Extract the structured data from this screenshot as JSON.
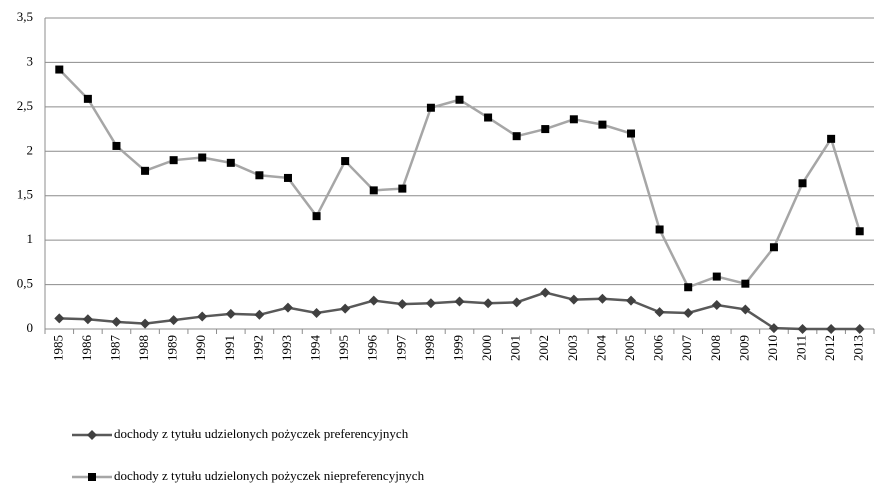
{
  "chart_data": {
    "type": "line",
    "categories": [
      "1985",
      "1986",
      "1987",
      "1988",
      "1989",
      "1990",
      "1991",
      "1992",
      "1993",
      "1994",
      "1995",
      "1996",
      "1997",
      "1998",
      "1999",
      "2000",
      "2001",
      "2002",
      "2003",
      "2004",
      "2005",
      "2006",
      "2007",
      "2008",
      "2009",
      "2010",
      "2011",
      "2012",
      "2013"
    ],
    "series": [
      {
        "name": "dochody z tytułu udzielonych pożyczek preferencyjnych",
        "color": "#595959",
        "marker": "diamond",
        "marker_color": "#404040",
        "values": [
          0.12,
          0.11,
          0.08,
          0.06,
          0.1,
          0.14,
          0.17,
          0.16,
          0.24,
          0.18,
          0.23,
          0.32,
          0.28,
          0.29,
          0.31,
          0.29,
          0.3,
          0.41,
          0.33,
          0.34,
          0.32,
          0.19,
          0.18,
          0.27,
          0.22,
          0.01,
          0.0,
          0.0,
          0.0
        ]
      },
      {
        "name": "dochody z tytułu udzielonych pożyczek niepreferencyjnych",
        "color": "#a6a6a6",
        "marker": "square",
        "marker_color": "#000000",
        "values": [
          2.92,
          2.59,
          2.06,
          1.78,
          1.9,
          1.93,
          1.87,
          1.73,
          1.7,
          1.27,
          1.89,
          1.56,
          1.58,
          2.49,
          2.58,
          2.38,
          2.17,
          2.25,
          2.36,
          2.3,
          2.2,
          1.12,
          0.47,
          0.59,
          0.51,
          0.92,
          1.64,
          2.14,
          1.1
        ]
      }
    ],
    "ylim": [
      0,
      3.5
    ],
    "yticks": [
      0,
      {
        "value": 0.5,
        "label": "0,5"
      },
      1,
      {
        "value": 1.5,
        "label": "1,5"
      },
      2,
      {
        "value": 2.5,
        "label": "2,5"
      },
      3,
      {
        "value": 3.5,
        "label": "3,5"
      }
    ],
    "grid": true,
    "legend": "bottom"
  }
}
